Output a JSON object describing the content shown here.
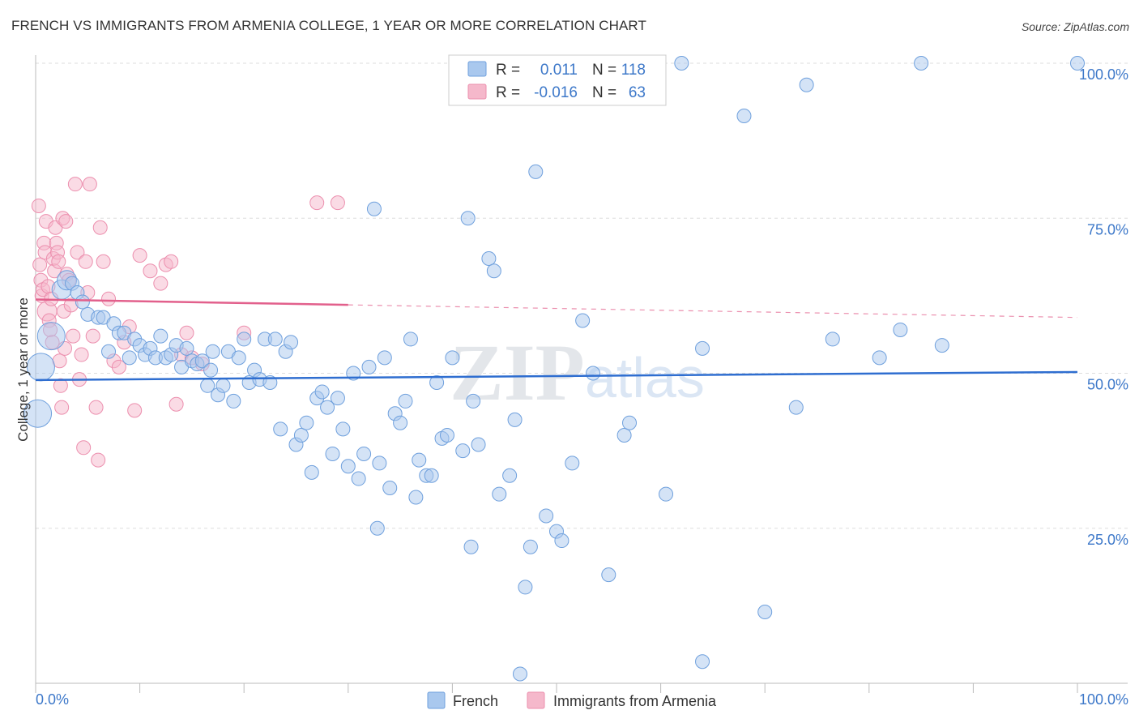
{
  "header": {
    "title": "FRENCH VS IMMIGRANTS FROM ARMENIA COLLEGE, 1 YEAR OR MORE CORRELATION CHART",
    "source": "Source: ZipAtlas.com"
  },
  "colors": {
    "french_fill": "#a9c8ee",
    "french_stroke": "#6fa0dd",
    "french_line": "#2f6ed0",
    "armenia_fill": "#f5b8cb",
    "armenia_stroke": "#ec8fae",
    "armenia_line": "#e2608c",
    "grid": "#dddddd",
    "tick_label": "#3d78c9"
  },
  "legend": {
    "rows": [
      {
        "r_label": "R =",
        "r_value": "0.011",
        "n_label": "N =",
        "n_value": "118"
      },
      {
        "r_label": "R =",
        "r_value": "-0.016",
        "n_label": "N =",
        "n_value": "63"
      }
    ]
  },
  "watermark": {
    "zip": "ZIP",
    "atlas": "atlas"
  },
  "chart_data": {
    "type": "scatter",
    "title": "FRENCH VS IMMIGRANTS FROM ARMENIA COLLEGE, 1 YEAR OR MORE CORRELATION CHART",
    "xlabel": "",
    "ylabel": "College, 1 year or more",
    "xlim": [
      0,
      100
    ],
    "ylim": [
      0,
      100
    ],
    "x_tick_labels": [
      "0.0%",
      "100.0%"
    ],
    "y_ticks": [
      25,
      50,
      75,
      100
    ],
    "y_tick_labels": [
      "25.0%",
      "50.0%",
      "75.0%",
      "100.0%"
    ],
    "grid": true,
    "legend_position": "top-center",
    "series": [
      {
        "name": "French",
        "r": 0.011,
        "n": 118,
        "trend": {
          "x": [
            0,
            100
          ],
          "y": [
            48.9,
            50.2
          ],
          "dashed_from": null
        },
        "points": [
          [
            0.2,
            43.5,
            3
          ],
          [
            0.5,
            51.0,
            3
          ],
          [
            1.5,
            56.0,
            3
          ],
          [
            2.5,
            63.5,
            2
          ],
          [
            3.0,
            65.0,
            2
          ],
          [
            3.5,
            64.5,
            1
          ],
          [
            4.0,
            63.0,
            1
          ],
          [
            4.5,
            61.5,
            1
          ],
          [
            5.0,
            59.5,
            1
          ],
          [
            6.0,
            59.0,
            1
          ],
          [
            6.5,
            59.0,
            1
          ],
          [
            7.5,
            58.0,
            1
          ],
          [
            7.0,
            53.5,
            1
          ],
          [
            8.0,
            56.5,
            1
          ],
          [
            8.5,
            56.5,
            1
          ],
          [
            9.0,
            52.5,
            1
          ],
          [
            9.5,
            55.5,
            1
          ],
          [
            10.0,
            54.5,
            1
          ],
          [
            10.5,
            53.0,
            1
          ],
          [
            11.0,
            54.0,
            1
          ],
          [
            11.5,
            52.5,
            1
          ],
          [
            12.0,
            56.0,
            1
          ],
          [
            12.5,
            52.5,
            1
          ],
          [
            13.0,
            53.0,
            1
          ],
          [
            13.5,
            54.5,
            1
          ],
          [
            14.0,
            51.0,
            1
          ],
          [
            14.5,
            54.0,
            1
          ],
          [
            15.0,
            52.0,
            1
          ],
          [
            15.5,
            51.5,
            1
          ],
          [
            16.0,
            52.0,
            1
          ],
          [
            16.5,
            48.0,
            1
          ],
          [
            16.8,
            50.5,
            1
          ],
          [
            17.0,
            53.5,
            1
          ],
          [
            17.5,
            46.5,
            1
          ],
          [
            18.0,
            48.0,
            1
          ],
          [
            18.5,
            53.5,
            1
          ],
          [
            19.0,
            45.5,
            1
          ],
          [
            19.5,
            52.5,
            1
          ],
          [
            20.0,
            55.5,
            1
          ],
          [
            20.5,
            48.5,
            1
          ],
          [
            21.0,
            50.5,
            1
          ],
          [
            21.5,
            49.0,
            1
          ],
          [
            22.0,
            55.5,
            1
          ],
          [
            22.5,
            48.5,
            1
          ],
          [
            23.0,
            55.5,
            1
          ],
          [
            23.5,
            41.0,
            1
          ],
          [
            24.0,
            53.5,
            1
          ],
          [
            24.5,
            55.0,
            1
          ],
          [
            25.0,
            38.5,
            1
          ],
          [
            25.5,
            40.0,
            1
          ],
          [
            26.0,
            42.0,
            1
          ],
          [
            26.5,
            34.0,
            1
          ],
          [
            27.0,
            46.0,
            1
          ],
          [
            27.5,
            47.0,
            1
          ],
          [
            28.0,
            44.5,
            1
          ],
          [
            28.5,
            37.0,
            1
          ],
          [
            29.0,
            46.0,
            1
          ],
          [
            29.5,
            41.0,
            1
          ],
          [
            30.0,
            35.0,
            1
          ],
          [
            30.5,
            50.0,
            1
          ],
          [
            31.0,
            33.0,
            1
          ],
          [
            31.5,
            37.0,
            1
          ],
          [
            32.0,
            51.0,
            1
          ],
          [
            32.5,
            76.5,
            1
          ],
          [
            32.8,
            25.0,
            1
          ],
          [
            33.0,
            35.5,
            1
          ],
          [
            33.5,
            52.5,
            1
          ],
          [
            34.0,
            31.5,
            1
          ],
          [
            34.5,
            43.5,
            1
          ],
          [
            35.0,
            42.0,
            1
          ],
          [
            35.5,
            45.5,
            1
          ],
          [
            36.0,
            55.5,
            1
          ],
          [
            36.5,
            30.0,
            1
          ],
          [
            36.8,
            36.0,
            1
          ],
          [
            37.5,
            33.5,
            1
          ],
          [
            38.0,
            33.5,
            1
          ],
          [
            38.5,
            48.5,
            1
          ],
          [
            39.0,
            39.5,
            1
          ],
          [
            39.5,
            40.0,
            1
          ],
          [
            40.0,
            52.5,
            1
          ],
          [
            41.0,
            37.5,
            1
          ],
          [
            41.5,
            75.0,
            1
          ],
          [
            41.8,
            22.0,
            1
          ],
          [
            42.0,
            45.5,
            1
          ],
          [
            42.5,
            38.5,
            1
          ],
          [
            43.5,
            68.5,
            1
          ],
          [
            44.0,
            66.5,
            1
          ],
          [
            44.5,
            30.5,
            1
          ],
          [
            45.5,
            33.5,
            1
          ],
          [
            46.0,
            42.5,
            1
          ],
          [
            46.5,
            1.5,
            1
          ],
          [
            47.0,
            15.5,
            1
          ],
          [
            47.5,
            22.0,
            1
          ],
          [
            48.0,
            82.5,
            1
          ],
          [
            49.0,
            27.0,
            1
          ],
          [
            50.0,
            24.5,
            1
          ],
          [
            50.5,
            23.0,
            1
          ],
          [
            51.5,
            35.5,
            1
          ],
          [
            52.5,
            58.5,
            1
          ],
          [
            53.5,
            50.0,
            1
          ],
          [
            55.0,
            17.5,
            1
          ],
          [
            56.5,
            40.0,
            1
          ],
          [
            57.0,
            42.0,
            1
          ],
          [
            60.5,
            30.5,
            1
          ],
          [
            62.0,
            100.0,
            1
          ],
          [
            64.0,
            3.5,
            1
          ],
          [
            64.0,
            54.0,
            1
          ],
          [
            68.0,
            91.5,
            1
          ],
          [
            70.0,
            11.5,
            1
          ],
          [
            73.0,
            44.5,
            1
          ],
          [
            74.0,
            96.5,
            1
          ],
          [
            76.5,
            55.5,
            1
          ],
          [
            81.0,
            52.5,
            1
          ],
          [
            83.0,
            57.0,
            1
          ],
          [
            85.0,
            100.0,
            1
          ],
          [
            87.0,
            54.5,
            1
          ],
          [
            100.0,
            100.0,
            1
          ]
        ]
      },
      {
        "name": "Immigrants from Armenia",
        "r": -0.016,
        "n": 63,
        "trend": {
          "x": [
            0,
            100
          ],
          "y": [
            61.9,
            59.0
          ],
          "dashed_from": 30
        },
        "points": [
          [
            0.3,
            77.0,
            1
          ],
          [
            0.4,
            67.5,
            1
          ],
          [
            0.5,
            65.0,
            1
          ],
          [
            0.6,
            62.5,
            1
          ],
          [
            0.7,
            63.5,
            1
          ],
          [
            0.8,
            71.0,
            1
          ],
          [
            0.9,
            69.5,
            1
          ],
          [
            1.0,
            74.5,
            1
          ],
          [
            1.1,
            60.0,
            2
          ],
          [
            1.2,
            64.0,
            1
          ],
          [
            1.3,
            58.5,
            1
          ],
          [
            1.4,
            57.0,
            1
          ],
          [
            1.5,
            62.0,
            1
          ],
          [
            1.6,
            55.0,
            1
          ],
          [
            1.7,
            68.5,
            1
          ],
          [
            1.8,
            66.5,
            1
          ],
          [
            1.9,
            73.5,
            1
          ],
          [
            2.0,
            71.0,
            1
          ],
          [
            2.1,
            69.5,
            1
          ],
          [
            2.2,
            68.0,
            1
          ],
          [
            2.3,
            52.0,
            1
          ],
          [
            2.4,
            48.0,
            1
          ],
          [
            2.5,
            44.5,
            1
          ],
          [
            2.6,
            75.0,
            1
          ],
          [
            2.7,
            60.0,
            1
          ],
          [
            2.8,
            54.0,
            1
          ],
          [
            2.9,
            74.5,
            1
          ],
          [
            3.0,
            66.0,
            1
          ],
          [
            3.2,
            65.0,
            1
          ],
          [
            3.4,
            61.0,
            1
          ],
          [
            3.6,
            56.0,
            1
          ],
          [
            3.8,
            80.5,
            1
          ],
          [
            4.0,
            69.5,
            1
          ],
          [
            4.2,
            49.0,
            1
          ],
          [
            4.4,
            53.0,
            1
          ],
          [
            4.6,
            38.0,
            1
          ],
          [
            4.8,
            68.0,
            1
          ],
          [
            5.0,
            63.0,
            1
          ],
          [
            5.2,
            80.5,
            1
          ],
          [
            5.5,
            56.0,
            1
          ],
          [
            5.8,
            44.5,
            1
          ],
          [
            6.0,
            36.0,
            1
          ],
          [
            6.2,
            73.5,
            1
          ],
          [
            6.5,
            68.0,
            1
          ],
          [
            7.0,
            62.0,
            1
          ],
          [
            7.5,
            52.0,
            1
          ],
          [
            8.0,
            51.0,
            1
          ],
          [
            8.5,
            55.0,
            1
          ],
          [
            9.0,
            57.5,
            1
          ],
          [
            9.5,
            44.0,
            1
          ],
          [
            10.0,
            69.0,
            1
          ],
          [
            11.0,
            66.5,
            1
          ],
          [
            12.0,
            64.5,
            1
          ],
          [
            12.5,
            67.5,
            1
          ],
          [
            13.0,
            68.0,
            1
          ],
          [
            13.5,
            45.0,
            1
          ],
          [
            14.0,
            53.0,
            1
          ],
          [
            14.5,
            56.5,
            1
          ],
          [
            15.0,
            52.5,
            1
          ],
          [
            16.0,
            51.5,
            1
          ],
          [
            20.0,
            56.5,
            1
          ],
          [
            27.0,
            77.5,
            1
          ],
          [
            29.0,
            77.5,
            1
          ]
        ]
      }
    ]
  },
  "bottom_legend": [
    {
      "label": "French"
    },
    {
      "label": "Immigrants from Armenia"
    }
  ]
}
